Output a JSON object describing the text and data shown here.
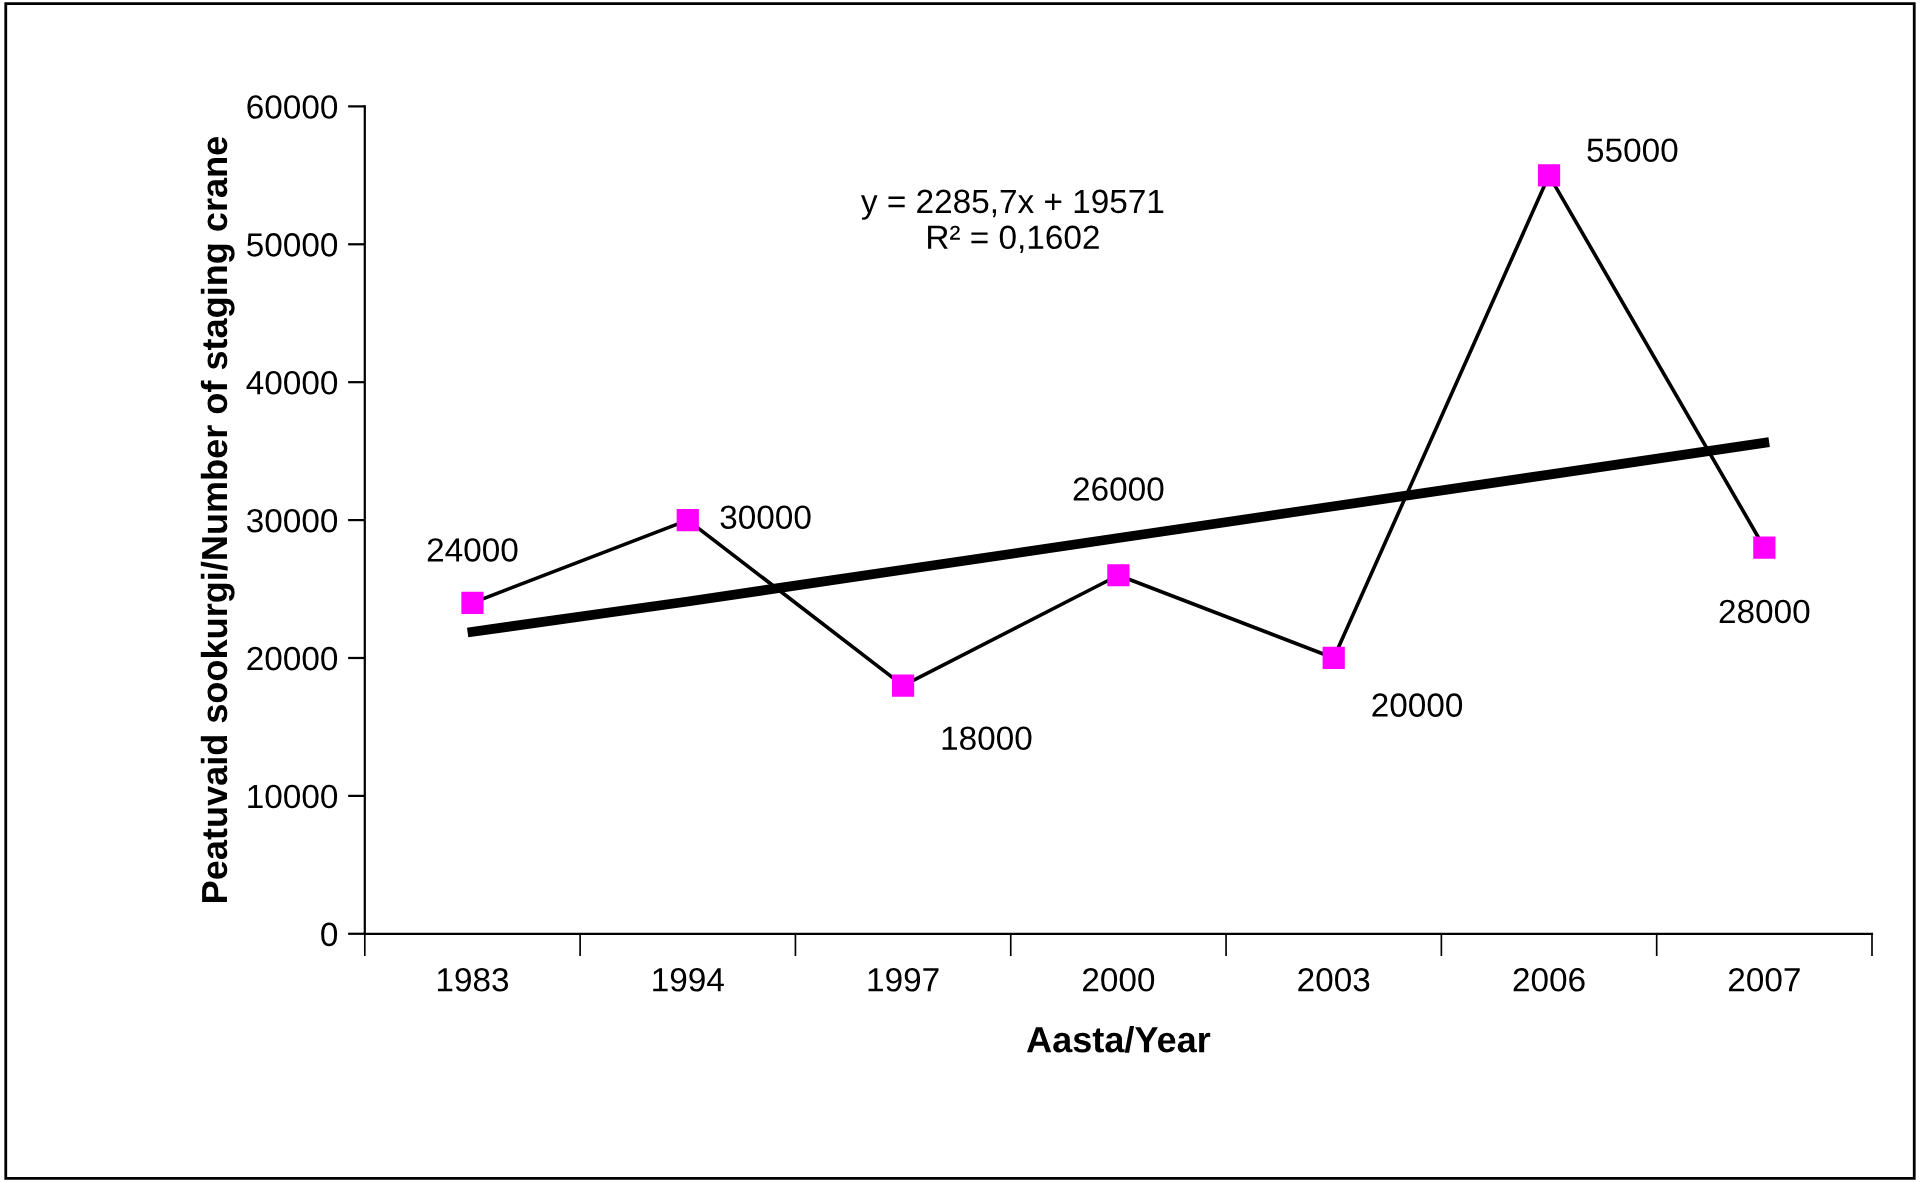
{
  "chart_data": {
    "type": "line",
    "xlabel": "Aasta/Year",
    "ylabel": "Peatuvaid sookurgi/Number of staging crane",
    "categories": [
      "1983",
      "1994",
      "1997",
      "2000",
      "2003",
      "2006",
      "2007"
    ],
    "series": [
      {
        "color": "#000000",
        "colors": [
          "#ff00ff",
          "#ff00ff",
          "#ff00ff",
          "#ff00ff",
          "#ff00ff",
          "#ff00ff",
          "#ff00ff"
        ],
        "marker": "square",
        "data_labels": true,
        "values": [
          24000,
          30000,
          18000,
          26000,
          20000,
          55000,
          28000
        ]
      },
      {
        "type": "line",
        "color": "#000000",
        "marker": "none",
        "values": [
          21900,
          24100,
          26400,
          28700,
          31000,
          33300,
          35600
        ]
      }
    ],
    "annotations": [
      "y = 2285,7x + 19571\nR² = 0,1602"
    ],
    "ylim": [
      0,
      60000
    ],
    "yticks": [
      0,
      10000,
      20000,
      30000,
      40000,
      50000,
      60000
    ],
    "grid": false,
    "legend": false
  }
}
